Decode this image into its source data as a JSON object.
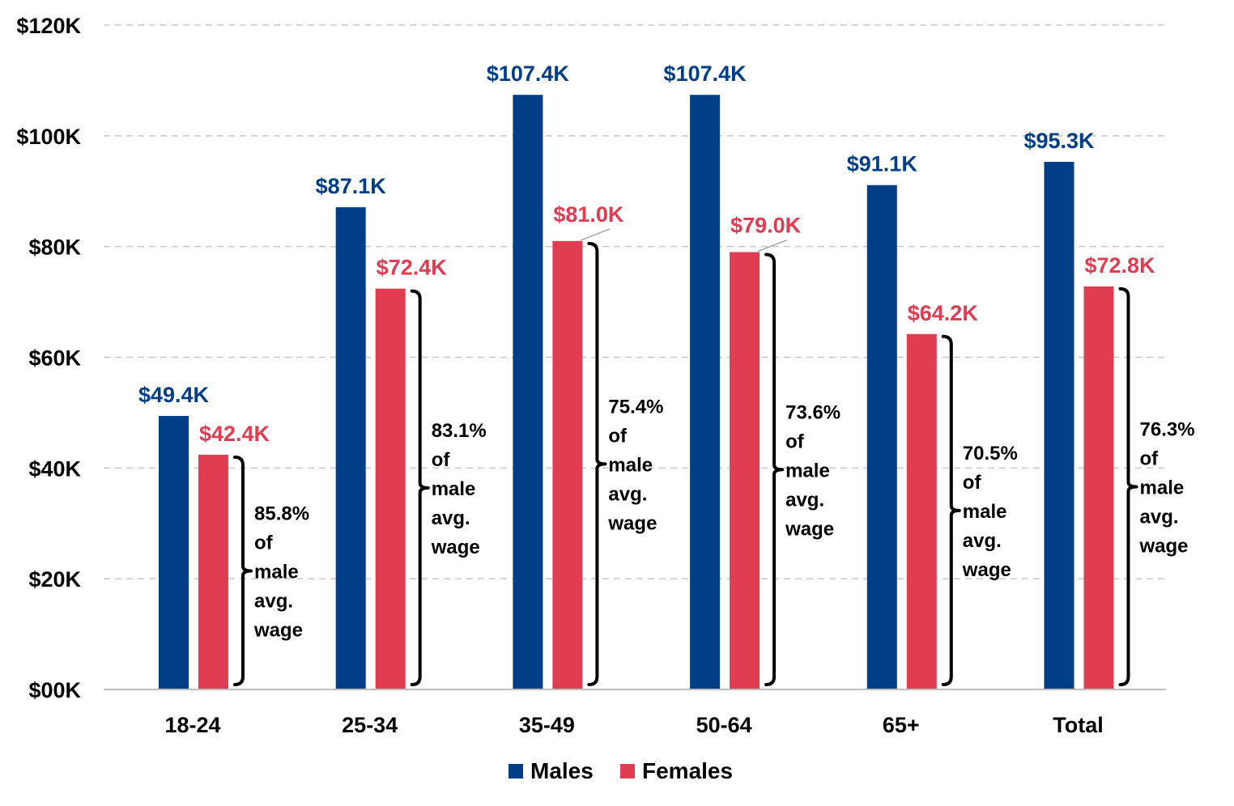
{
  "chart_data": {
    "type": "bar",
    "categories": [
      "18-24",
      "25-34",
      "35-49",
      "50-64",
      "65+",
      "Total"
    ],
    "series": [
      {
        "name": "Males",
        "color": "#003f87",
        "values": [
          49.4,
          87.1,
          107.4,
          107.4,
          91.1,
          95.3
        ],
        "labels": [
          "$49.4K",
          "$87.1K",
          "$107.4K",
          "$107.4K",
          "$91.1K",
          "$95.3K"
        ]
      },
      {
        "name": "Females",
        "color": "#e03c52",
        "values": [
          42.4,
          72.4,
          81.0,
          79.0,
          64.2,
          72.8
        ],
        "labels": [
          "$42.4K",
          "$72.4K",
          "$81.0K",
          "$79.0K",
          "$64.2K",
          "$72.8K"
        ]
      }
    ],
    "annotations": [
      {
        "category": "18-24",
        "lines": [
          "85.8%",
          "of",
          "male",
          "avg.",
          "wage"
        ]
      },
      {
        "category": "25-34",
        "lines": [
          "83.1%",
          "of",
          "male",
          "avg.",
          "wage"
        ]
      },
      {
        "category": "35-49",
        "lines": [
          "75.4%",
          "of",
          "male",
          "avg.",
          "wage"
        ]
      },
      {
        "category": "50-64",
        "lines": [
          "73.6%",
          "of",
          "male",
          "avg.",
          "wage"
        ]
      },
      {
        "category": "65+",
        "lines": [
          "70.5%",
          "of",
          "male",
          "avg.",
          "wage"
        ]
      },
      {
        "category": "Total",
        "lines": [
          "76.3%",
          "of",
          "male",
          "avg.",
          "wage"
        ]
      }
    ],
    "y_ticks": [
      {
        "value": 0,
        "label": "$00K"
      },
      {
        "value": 20,
        "label": "$20K"
      },
      {
        "value": 40,
        "label": "$40K"
      },
      {
        "value": 60,
        "label": "$60K"
      },
      {
        "value": 80,
        "label": "$80K"
      },
      {
        "value": 100,
        "label": "$100K"
      },
      {
        "value": 120,
        "label": "$120K"
      }
    ],
    "ylim": [
      0,
      120
    ],
    "grid": "dashed horizontal",
    "legend": "bottom-center",
    "title": "",
    "xlabel": "",
    "ylabel": ""
  }
}
